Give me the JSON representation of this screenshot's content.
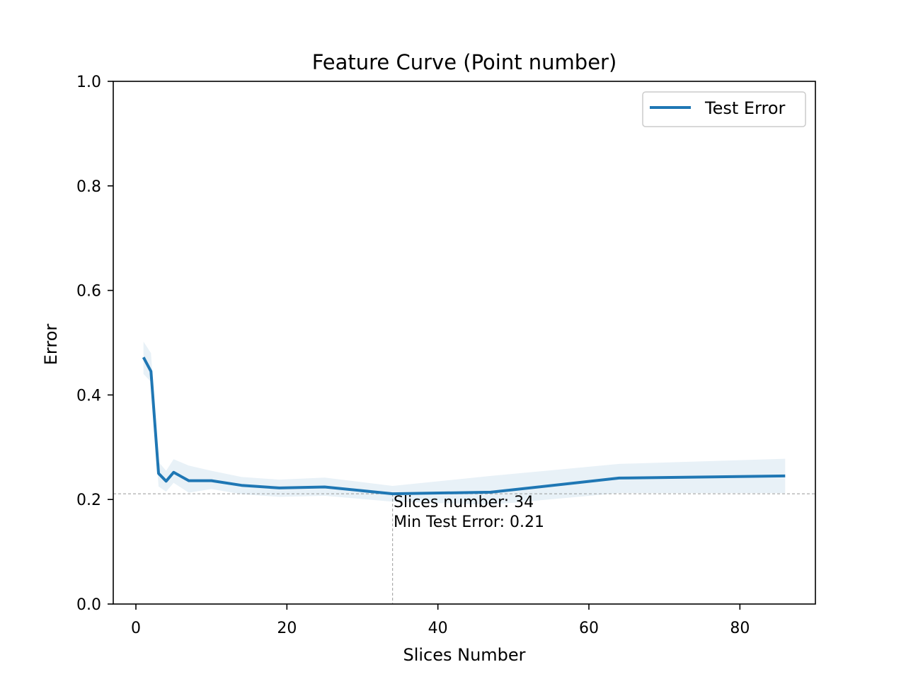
{
  "chart_data": {
    "type": "line",
    "title": "Feature Curve (Point number)",
    "xlabel": "Slices Number",
    "ylabel": "Error",
    "xlim": [
      -3,
      90
    ],
    "ylim": [
      0.0,
      1.0
    ],
    "xticks": [
      0,
      20,
      40,
      60,
      80
    ],
    "yticks": [
      0.0,
      0.2,
      0.4,
      0.6,
      0.8,
      1.0
    ],
    "xtick_labels": [
      "0",
      "20",
      "40",
      "60",
      "80"
    ],
    "ytick_labels": [
      "0.0",
      "0.2",
      "0.4",
      "0.6",
      "0.8",
      "1.0"
    ],
    "grid": false,
    "legend_position": "top-right",
    "series": [
      {
        "name": "Test Error",
        "color": "#1f77b4",
        "x": [
          1,
          2,
          3,
          4,
          5,
          7,
          10,
          14,
          19,
          25,
          34,
          47,
          64,
          86
        ],
        "y": [
          0.472,
          0.445,
          0.25,
          0.235,
          0.252,
          0.236,
          0.236,
          0.227,
          0.222,
          0.224,
          0.211,
          0.214,
          0.241,
          0.245
        ],
        "lower": [
          0.44,
          0.425,
          0.225,
          0.215,
          0.232,
          0.213,
          0.22,
          0.21,
          0.205,
          0.207,
          0.196,
          0.19,
          0.212,
          0.212
        ],
        "upper": [
          0.502,
          0.48,
          0.272,
          0.255,
          0.277,
          0.265,
          0.255,
          0.243,
          0.238,
          0.242,
          0.226,
          0.245,
          0.268,
          0.278
        ]
      }
    ],
    "min_marker": {
      "x": 34,
      "y": 0.211
    },
    "annotation": {
      "line1": "Slices number: 34",
      "line2": "Min Test Error: 0.21"
    }
  }
}
